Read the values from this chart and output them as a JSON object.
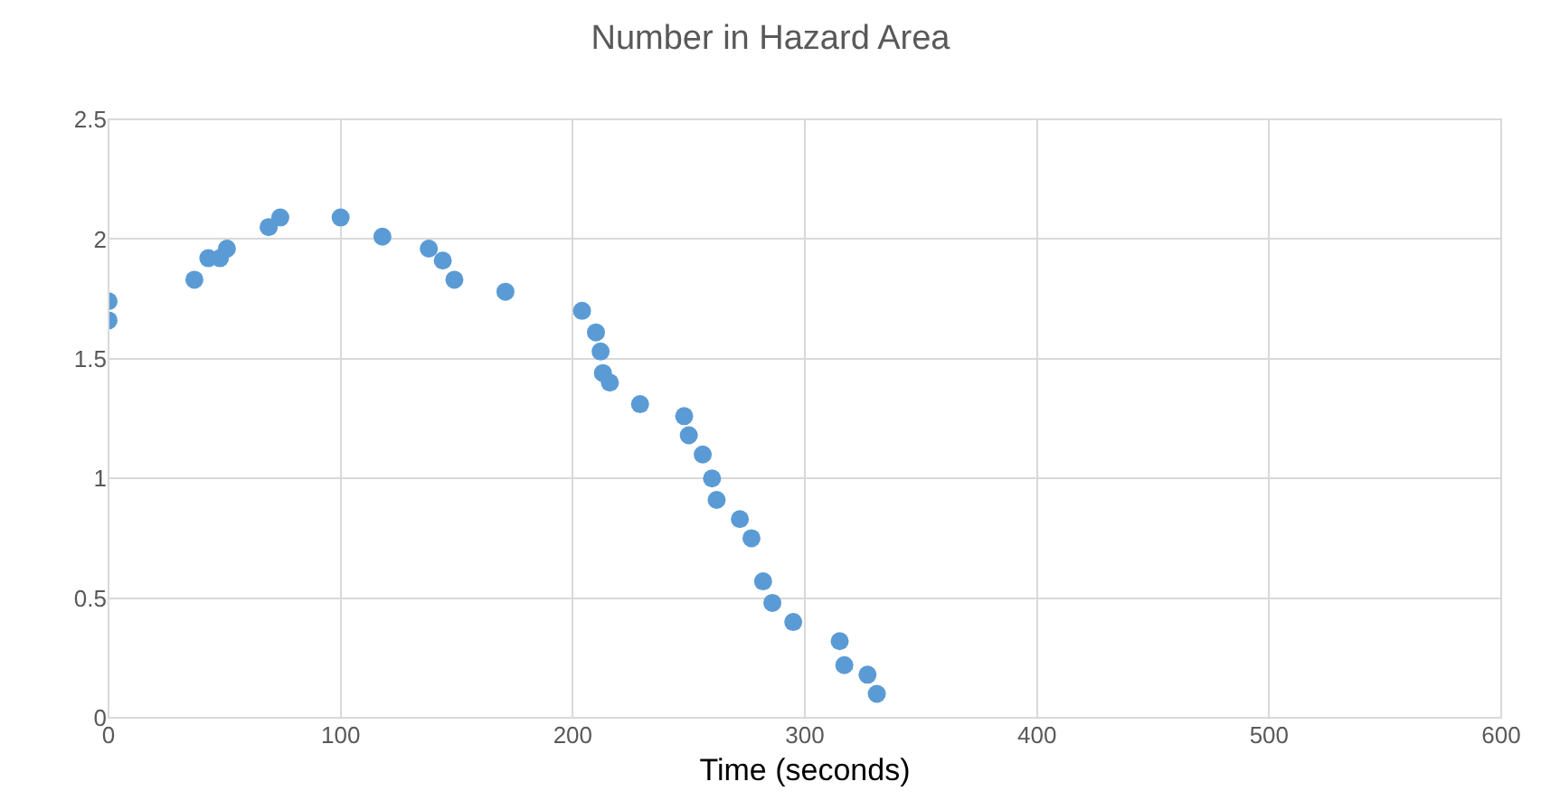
{
  "chart_data": {
    "type": "scatter",
    "title": "Number in Hazard Area",
    "xlabel": "Time (seconds)",
    "x": [
      0,
      0,
      37,
      43,
      48,
      51,
      69,
      74,
      100,
      118,
      138,
      144,
      149,
      171,
      204,
      210,
      212,
      213,
      216,
      229,
      248,
      250,
      256,
      260,
      262,
      272,
      277,
      282,
      286,
      295,
      315,
      317,
      327,
      331
    ],
    "series": [
      {
        "color": "#5b9bd5",
        "values": [
          1.66,
          1.74,
          1.83,
          1.92,
          1.92,
          1.96,
          2.05,
          2.09,
          2.09,
          2.01,
          1.96,
          1.91,
          1.83,
          1.78,
          1.7,
          1.61,
          1.53,
          1.44,
          1.4,
          1.31,
          1.26,
          1.18,
          1.1,
          1.0,
          0.91,
          0.83,
          0.75,
          0.57,
          0.48,
          0.4,
          0.32,
          0.22,
          0.18,
          0.1
        ]
      }
    ],
    "xlim": [
      0,
      600
    ],
    "xticks": [
      0,
      100,
      200,
      300,
      400,
      500,
      600
    ],
    "ylim": [
      0,
      2.5
    ],
    "yticks": [
      0,
      0.5,
      1,
      1.5,
      2,
      2.5
    ],
    "grid": true,
    "marker": "circle"
  }
}
